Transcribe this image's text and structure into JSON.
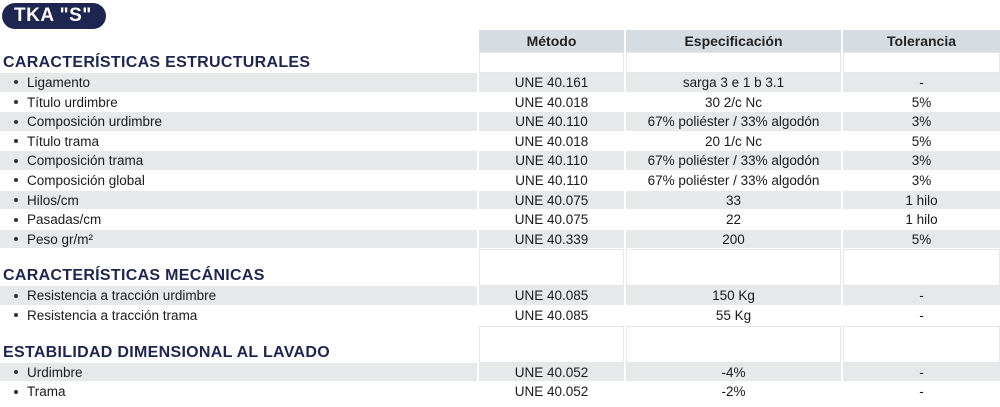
{
  "header": {
    "title": "TKA \"S\""
  },
  "table": {
    "columns": [
      "Método",
      "Especificación",
      "Tolerancia"
    ],
    "sections": [
      {
        "title": "CARACTERÍSTICAS ESTRUCTURALES",
        "rows": [
          [
            "Ligamento",
            "UNE 40.161",
            "sarga 3 e 1 b 3.1",
            "-"
          ],
          [
            "Título urdimbre",
            "UNE 40.018",
            "30 2/c Nc",
            "5%"
          ],
          [
            "Composición urdimbre",
            "UNE 40.110",
            "67% poliéster / 33% algodón",
            "3%"
          ],
          [
            "Título trama",
            "UNE 40.018",
            "20 1/c Nc",
            "5%"
          ],
          [
            "Composición trama",
            "UNE 40.110",
            "67% poliéster / 33% algodón",
            "3%"
          ],
          [
            "Composición global",
            "UNE 40.110",
            "67% poliéster / 33% algodón",
            "3%"
          ],
          [
            "Hilos/cm",
            "UNE 40.075",
            "33",
            "1 hilo"
          ],
          [
            "Pasadas/cm",
            "UNE 40.075",
            "22",
            "1 hilo"
          ],
          [
            "Peso gr/m²",
            "UNE 40.339",
            "200",
            "5%"
          ]
        ]
      },
      {
        "title": "CARACTERÍSTICAS MECÁNICAS",
        "rows": [
          [
            "Resistencia a tracción urdimbre",
            "UNE 40.085",
            "150 Kg",
            "-"
          ],
          [
            "Resistencia a tracción trama",
            "UNE 40.085",
            "55 Kg",
            "-"
          ]
        ]
      },
      {
        "title": "ESTABILIDAD DIMENSIONAL AL LAVADO",
        "rows": [
          [
            "Urdimbre",
            "UNE 40.052",
            "-4%",
            "-"
          ],
          [
            "Trama",
            "UNE 40.052",
            "-2%",
            "-"
          ]
        ]
      }
    ]
  }
}
